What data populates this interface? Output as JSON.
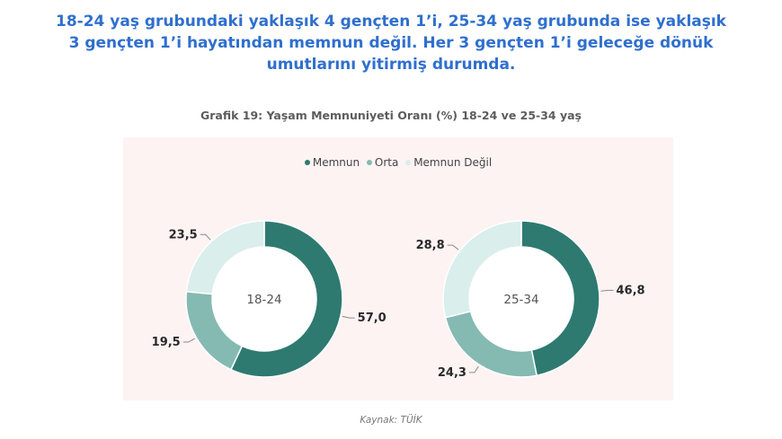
{
  "headline": "18-24 yaş grubundaki yaklaşık 4 gençten 1’i, 25-34 yaş grubunda ise yaklaşık 3 gençten 1’i hayatından memnun değil. Her 3 gençten 1’i geleceğe dönük umutlarını yitirmiş durumda.",
  "source": "Kaynak: TÜİK",
  "colors": {
    "memnun": "#2e7a70",
    "orta": "#84bab2",
    "degil": "#daeeec",
    "panel": "#fcf3f2"
  },
  "chart_data": {
    "type": "pie",
    "donut": true,
    "title": "Grafik 19: Yaşam Memnuniyeti Oranı (%) 18-24 ve 25-34 yaş",
    "legend_position": "top-center",
    "legend": [
      "Memnun",
      "Orta",
      "Memnun Değil"
    ],
    "categories": [
      "Memnun",
      "Orta",
      "Memnun Değil"
    ],
    "series": [
      {
        "name": "18-24",
        "values": [
          57.0,
          19.5,
          23.5
        ],
        "labels": [
          "57,0",
          "19,5",
          "23,5"
        ]
      },
      {
        "name": "25-34",
        "values": [
          46.8,
          24.3,
          28.8
        ],
        "labels": [
          "46,8",
          "24,3",
          "28,8"
        ]
      }
    ]
  }
}
